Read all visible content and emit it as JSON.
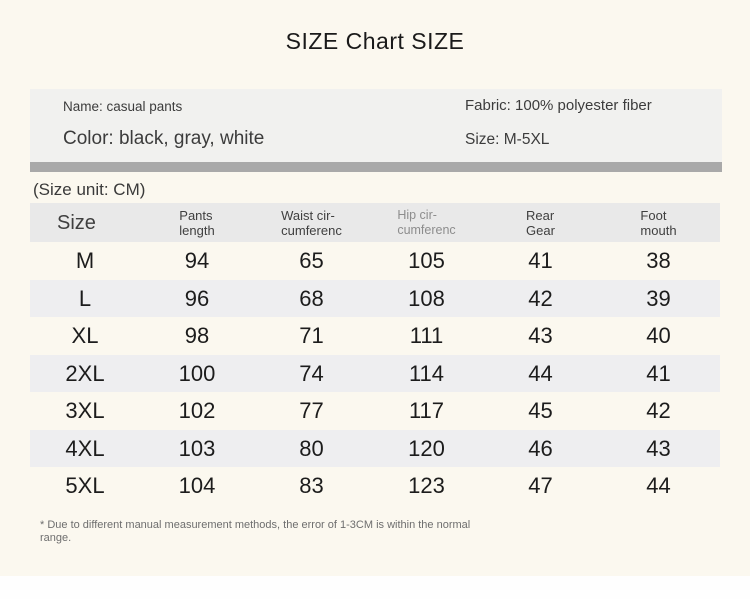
{
  "title": "SIZE Chart SIZE",
  "info_box": {
    "name": "Name: casual pants",
    "color": "Color: black, gray, white",
    "fabric": "Fabric: 100% polyester fiber",
    "size": "Size: M-5XL"
  },
  "size_unit_note": "(Size unit: CM)",
  "table": {
    "header": [
      {
        "line1": "Size",
        "line2": ""
      },
      {
        "line1": "Pants",
        "line2": "length"
      },
      {
        "line1": "Waist cir-",
        "line2": "cumferenc"
      },
      {
        "line1": "Hip cir-",
        "line2": "cumferenc"
      },
      {
        "line1": "Rear",
        "line2": "Gear"
      },
      {
        "line1": "Foot",
        "line2": "mouth"
      }
    ],
    "rows": [
      {
        "size": "M",
        "values": [
          "94",
          "65",
          "105",
          "41",
          "38"
        ]
      },
      {
        "size": "L",
        "values": [
          "96",
          "68",
          "108",
          "42",
          "39"
        ]
      },
      {
        "size": "XL",
        "values": [
          "98",
          "71",
          "111",
          "43",
          "40"
        ]
      },
      {
        "size": "2XL",
        "values": [
          "100",
          "74",
          "114",
          "44",
          "41"
        ]
      },
      {
        "size": "3XL",
        "values": [
          "102",
          "77",
          "117",
          "45",
          "42"
        ]
      },
      {
        "size": "4XL",
        "values": [
          "103",
          "80",
          "120",
          "46",
          "43"
        ]
      },
      {
        "size": "5XL",
        "values": [
          "104",
          "83",
          "123",
          "47",
          "44"
        ]
      }
    ]
  },
  "footnote": "* Due to different manual measurement methods, the error of 1-3CM is within the normal range.",
  "colors": {
    "page_bg": "#fbf8ef",
    "panel_bg": "#f1f1ef",
    "divider": "#a9a9a9",
    "header_bg": "#e9e9e9",
    "row_shade": "#eeeef0"
  },
  "chart_data": {
    "type": "table",
    "title": "SIZE Chart SIZE",
    "unit": "CM",
    "columns": [
      "Size",
      "Pants length",
      "Waist circumferenc",
      "Hip circumferenc",
      "Rear Gear",
      "Foot mouth"
    ],
    "rows": [
      [
        "M",
        94,
        65,
        105,
        41,
        38
      ],
      [
        "L",
        96,
        68,
        108,
        42,
        39
      ],
      [
        "XL",
        98,
        71,
        111,
        43,
        40
      ],
      [
        "2XL",
        100,
        74,
        114,
        44,
        41
      ],
      [
        "3XL",
        102,
        77,
        117,
        45,
        42
      ],
      [
        "4XL",
        103,
        80,
        120,
        46,
        43
      ],
      [
        "5XL",
        104,
        83,
        123,
        47,
        44
      ]
    ]
  }
}
